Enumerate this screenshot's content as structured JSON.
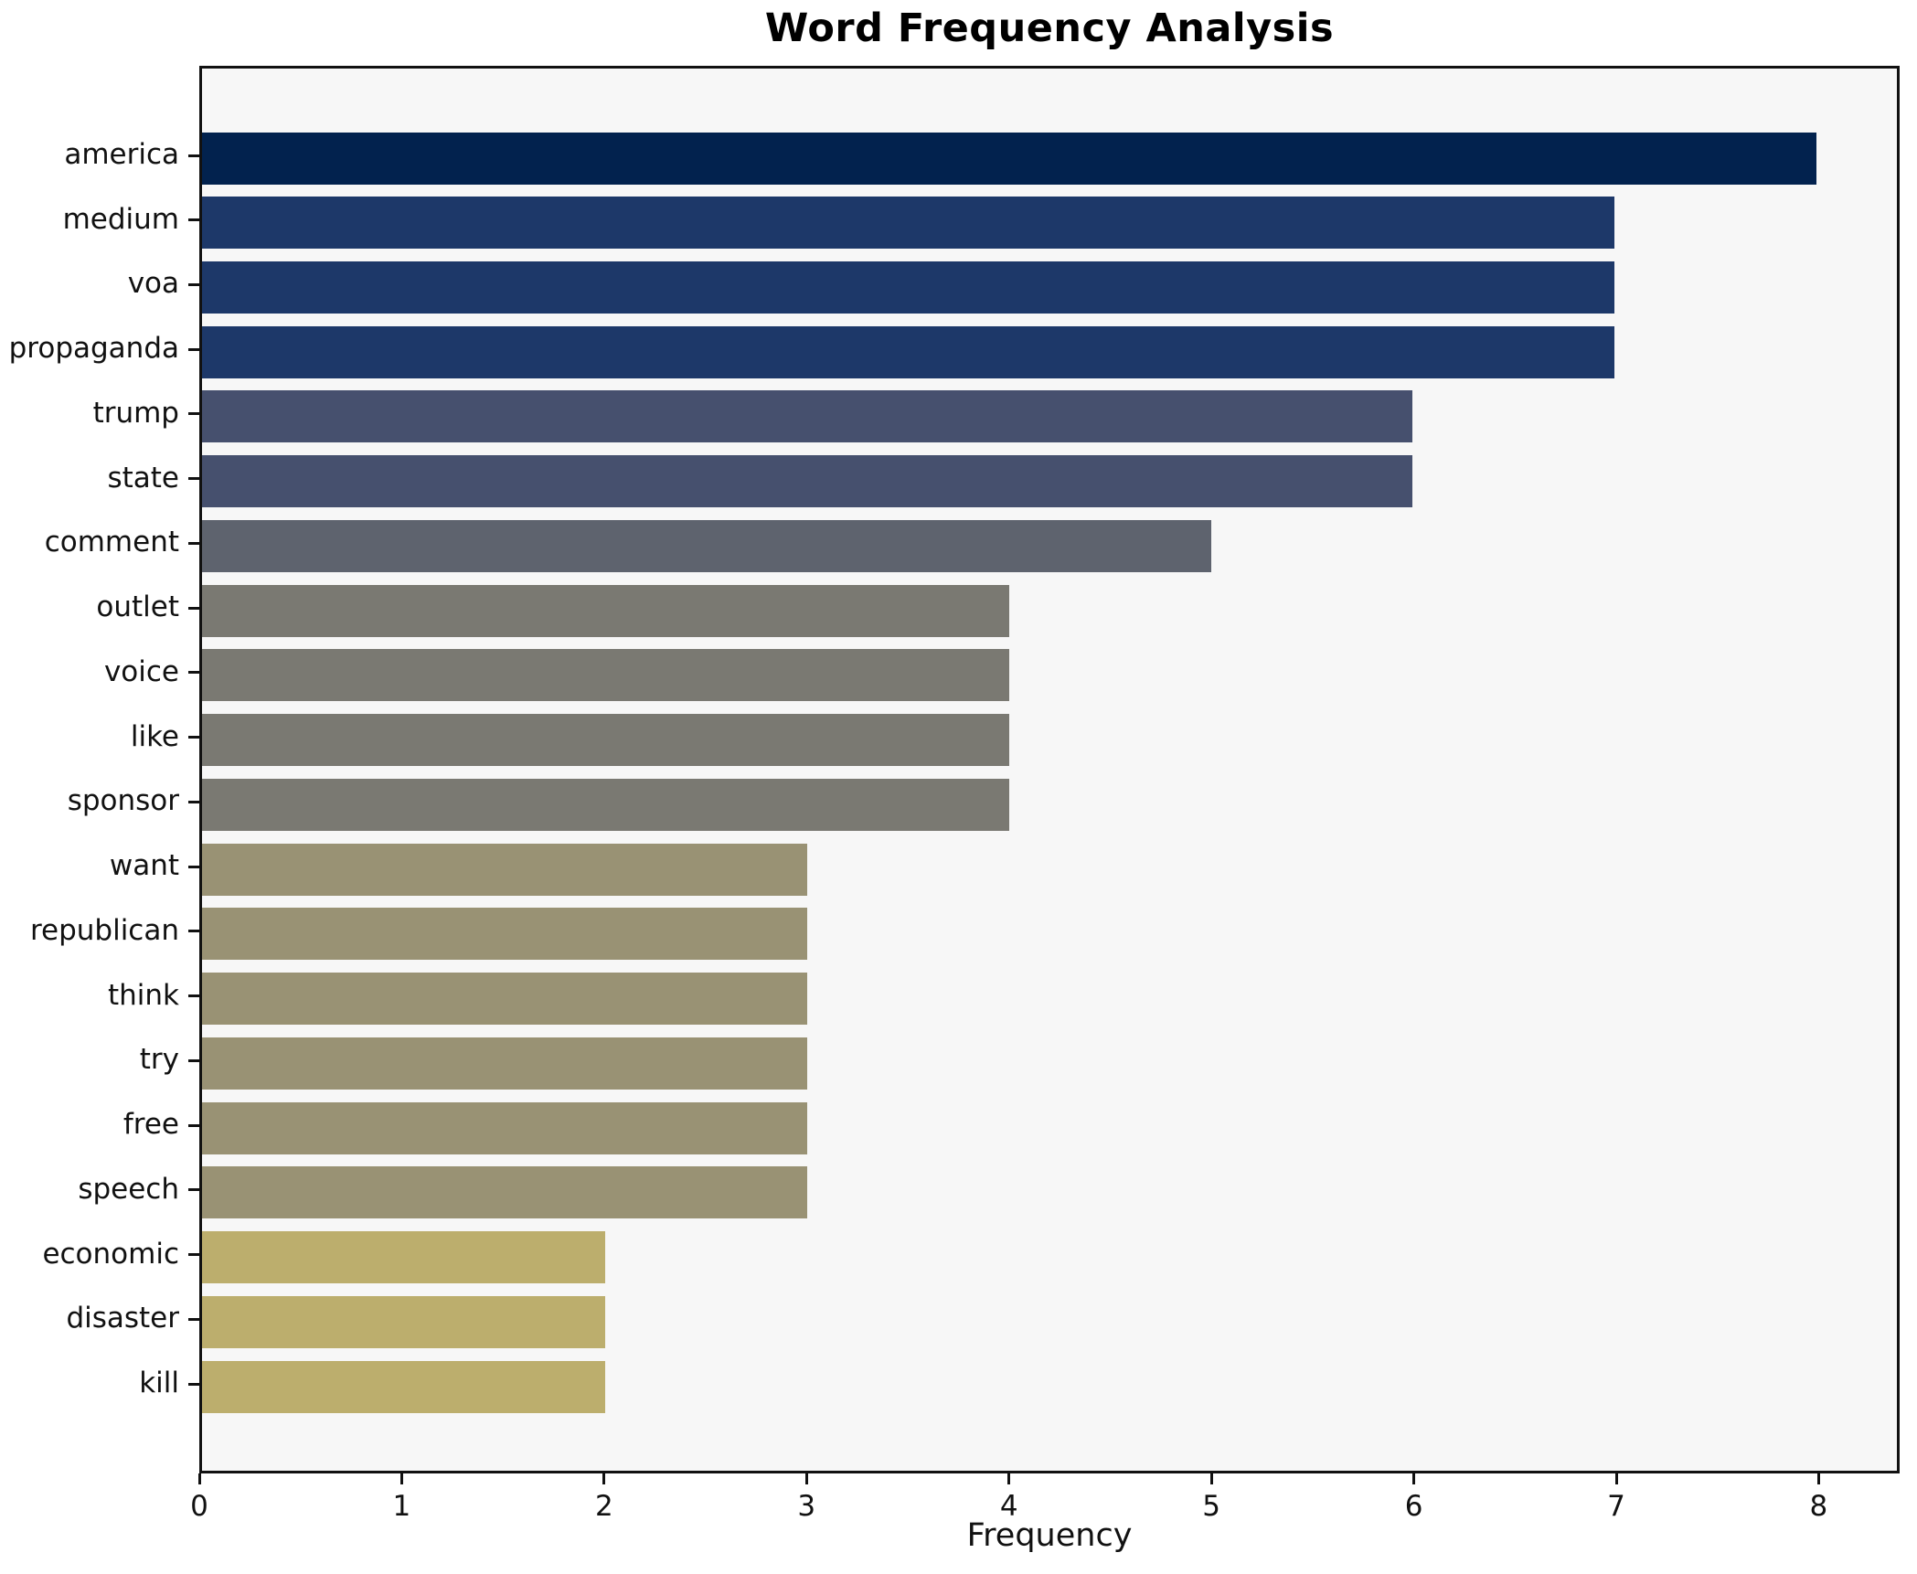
{
  "chart_data": {
    "type": "bar",
    "orientation": "horizontal",
    "title": "Word Frequency Analysis",
    "xlabel": "Frequency",
    "ylabel": "",
    "categories": [
      "america",
      "medium",
      "voa",
      "propaganda",
      "trump",
      "state",
      "comment",
      "outlet",
      "voice",
      "like",
      "sponsor",
      "want",
      "republican",
      "think",
      "try",
      "free",
      "speech",
      "economic",
      "disaster",
      "kill"
    ],
    "values": [
      8,
      7,
      7,
      7,
      6,
      6,
      5,
      4,
      4,
      4,
      4,
      3,
      3,
      3,
      3,
      3,
      3,
      2,
      2,
      2
    ],
    "xlim": [
      0,
      8.4
    ],
    "xticks": [
      0,
      1,
      2,
      3,
      4,
      5,
      6,
      7,
      8
    ],
    "grid": false,
    "legend": "none",
    "colors_by_value": {
      "8": "#02224e",
      "7": "#1d3869",
      "6": "#46506e",
      "5": "#5e636e",
      "4": "#7a7972",
      "3": "#999274",
      "2": "#bcae6d"
    },
    "plot_background": "#f7f7f7",
    "figure_background": "#ffffff",
    "spine_color": "#111111",
    "text_color": "#111111"
  }
}
